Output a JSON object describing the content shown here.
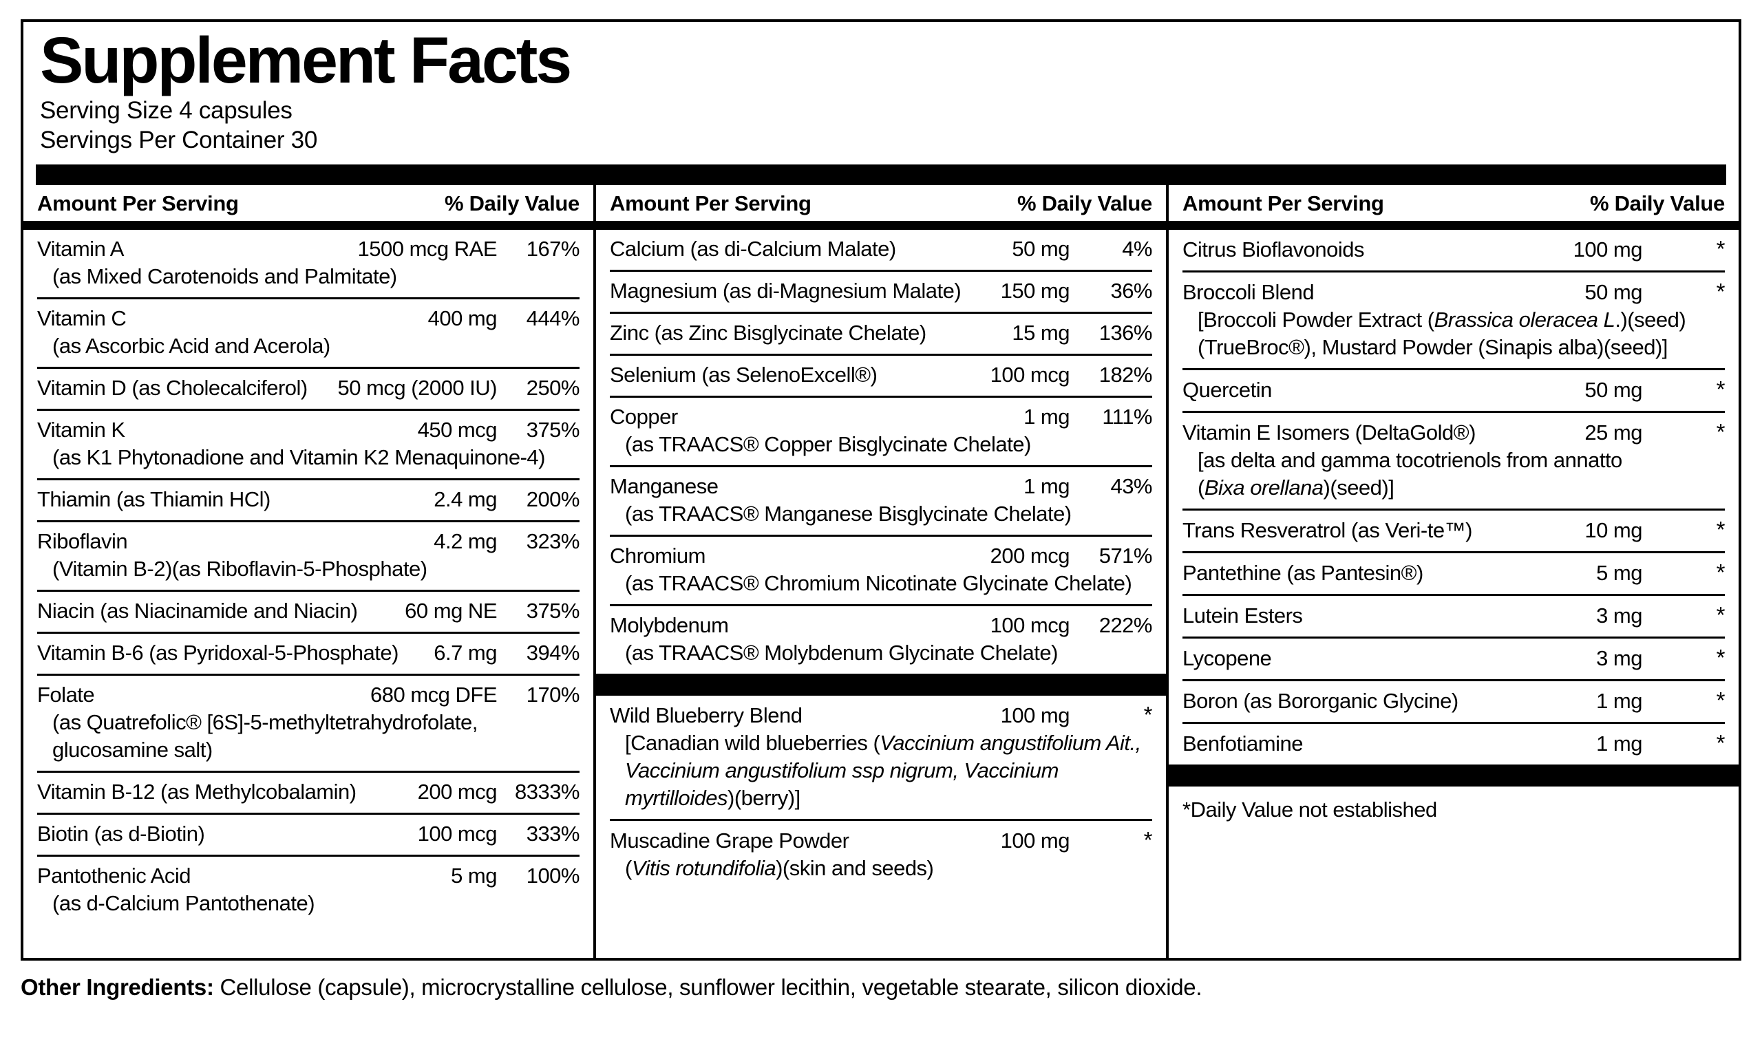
{
  "label": {
    "title": "Supplement Facts",
    "serving_size": "Serving Size 4 capsules",
    "servings_per_container": "Servings Per Container 30",
    "header": {
      "amount": "Amount Per Serving",
      "dv": "% Daily Value"
    },
    "footnote": "*Daily Value not established",
    "other_ingredients_label": "Other Ingredients:",
    "other_ingredients_text": " Cellulose (capsule), microcrystalline cellulose, sunflower lecithin, vegetable stearate, silicon dioxide."
  },
  "col1": {
    "rows": [
      {
        "name": "Vitamin A",
        "amount": "1500 mcg RAE",
        "dv": "167%",
        "sub1": "(as Mixed Carotenoids and Palmitate)"
      },
      {
        "name": "Vitamin C",
        "amount": "400 mg",
        "dv": "444%",
        "sub1": "(as Ascorbic Acid and Acerola)"
      },
      {
        "name": "Vitamin D (as Cholecalciferol)",
        "amount": "50 mcg (2000 IU)",
        "dv": "250%"
      },
      {
        "name": "Vitamin K",
        "amount": "450 mcg",
        "dv": "375%",
        "sub1": "(as K1 Phytonadione and Vitamin K2 Menaquinone-4)"
      },
      {
        "name": "Thiamin (as Thiamin HCl)",
        "amount": "2.4 mg",
        "dv": "200%"
      },
      {
        "name": "Riboflavin",
        "amount": "4.2 mg",
        "dv": "323%",
        "sub1": "(Vitamin B-2)(as Riboflavin-5-Phosphate)"
      },
      {
        "name": "Niacin (as Niacinamide and Niacin)",
        "amount": "60 mg NE",
        "dv": "375%"
      },
      {
        "name": "Vitamin B-6 (as Pyridoxal-5-Phosphate)",
        "amount": "6.7 mg",
        "dv": "394%"
      },
      {
        "name": "Folate",
        "amount": "680 mcg DFE",
        "dv": "170%",
        "sub1": "(as Quatrefolic® [6S]-5-methyltetrahydrofolate,",
        "sub2": "glucosamine salt)"
      },
      {
        "name": "Vitamin B-12 (as Methylcobalamin)",
        "amount": "200 mcg",
        "dv": "8333%"
      },
      {
        "name": "Biotin (as d-Biotin)",
        "amount": "100 mcg",
        "dv": "333%"
      },
      {
        "name": "Pantothenic Acid",
        "amount": "5 mg",
        "dv": "100%",
        "sub1": "(as d-Calcium Pantothenate)"
      }
    ]
  },
  "col2": {
    "rows": [
      {
        "name": "Calcium (as di-Calcium Malate)",
        "amount": "50 mg",
        "dv": "4%"
      },
      {
        "name": "Magnesium (as di-Magnesium Malate)",
        "amount": "150 mg",
        "dv": "36%"
      },
      {
        "name": "Zinc (as Zinc Bisglycinate Chelate)",
        "amount": "15 mg",
        "dv": "136%"
      },
      {
        "name": "Selenium (as SelenoExcell®)",
        "amount": "100 mcg",
        "dv": "182%"
      },
      {
        "name": "Copper",
        "amount": "1 mg",
        "dv": "111%",
        "sub1": "(as TRAACS® Copper Bisglycinate Chelate)"
      },
      {
        "name": "Manganese",
        "amount": "1 mg",
        "dv": "43%",
        "sub1": "(as TRAACS® Manganese Bisglycinate Chelate)"
      },
      {
        "name": "Chromium",
        "amount": "200 mcg",
        "dv": "571%",
        "sub1": "(as TRAACS® Chromium Nicotinate Glycinate Chelate)"
      },
      {
        "name": "Molybdenum",
        "amount": "100 mcg",
        "dv": "222%",
        "sub1": "(as TRAACS® Molybdenum Glycinate Chelate)"
      },
      {
        "name": "Wild Blueberry Blend",
        "amount": "100 mg",
        "dv": "*",
        "sub_pre": "[Canadian wild blueberries (",
        "sub_it": "Vaccinium angustifolium Ait., Vaccinium angustifolium ssp nigrum, Vaccinium myrtilloides",
        "sub_post": ")(berry)]"
      },
      {
        "name": "Muscadine Grape Powder",
        "amount": "100 mg",
        "dv": "*",
        "sub_pre": "(",
        "sub_it": "Vitis rotundifolia",
        "sub_post": ")(skin and seeds)"
      }
    ]
  },
  "col3": {
    "rows": [
      {
        "name": "Citrus Bioflavonoids",
        "amount": "100 mg",
        "dv": "*"
      },
      {
        "name": "Broccoli Blend",
        "amount": "50 mg",
        "dv": "*",
        "sub1_pre": "[Broccoli Powder Extract (",
        "sub1_it": "Brassica oleracea L",
        "sub1_post": ".)(seed)",
        "sub2": "(TrueBroc®), Mustard Powder (Sinapis alba)(seed)]"
      },
      {
        "name": "Quercetin",
        "amount": "50 mg",
        "dv": "*"
      },
      {
        "name": "Vitamin E Isomers (DeltaGold®)",
        "amount": "25 mg",
        "dv": "*",
        "sub1": "[as delta and gamma tocotrienols from annatto",
        "sub2_pre": "(",
        "sub2_it": "Bixa orellana",
        "sub2_post": ")(seed)]"
      },
      {
        "name": "Trans Resveratrol (as Veri-te™)",
        "amount": "10 mg",
        "dv": "*"
      },
      {
        "name": "Pantethine (as Pantesin®)",
        "amount": "5 mg",
        "dv": "*"
      },
      {
        "name": "Lutein Esters",
        "amount": "3 mg",
        "dv": "*"
      },
      {
        "name": "Lycopene",
        "amount": "3 mg",
        "dv": "*"
      },
      {
        "name": "Boron (as Bororganic Glycine)",
        "amount": "1 mg",
        "dv": "*"
      },
      {
        "name": "Benfotiamine",
        "amount": "1 mg",
        "dv": "*"
      }
    ]
  }
}
